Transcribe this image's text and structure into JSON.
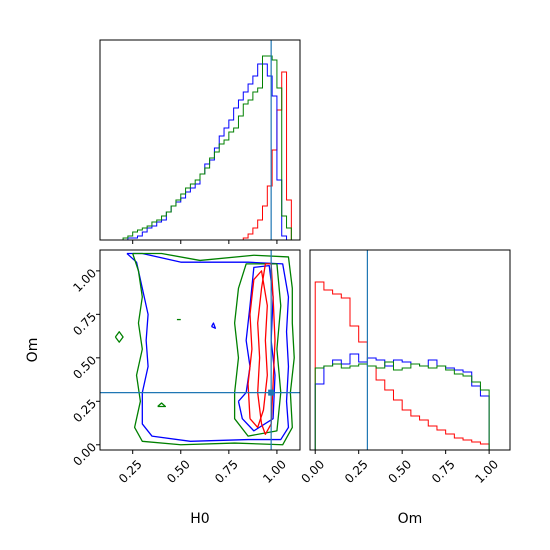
{
  "chart_data": {
    "type": "corner",
    "parameters": [
      "H0",
      "Om"
    ],
    "truths": {
      "H0": 0.97,
      "Om": 0.3
    },
    "truth_color": "#1f77b4",
    "series_colors": {
      "red": "#ff0000",
      "blue": "#0000ff",
      "green": "#008000"
    },
    "axes": {
      "H0": {
        "range": [
          0.08,
          1.12
        ],
        "ticks": [
          0.25,
          0.5,
          0.75,
          1.0
        ],
        "tick_labels": [
          "0.25",
          "0.50",
          "0.75",
          "1.00"
        ]
      },
      "Om": {
        "range": [
          -0.03,
          1.12
        ],
        "ticks": [
          0.0,
          0.25,
          0.5,
          0.75,
          1.0
        ],
        "tick_labels": [
          "0.00",
          "0.25",
          "0.50",
          "0.75",
          "1.00"
        ]
      }
    },
    "histograms": [
      {
        "param": "H0",
        "bins": [
          0.1,
          1.1,
          40
        ],
        "series": [
          {
            "color": "red",
            "counts": [
              0,
              0,
              0,
              0,
              0,
              0,
              0,
              0,
              0,
              0,
              0,
              0,
              0,
              0,
              0,
              0,
              0,
              0,
              0,
              0,
              0,
              0,
              0,
              0,
              0,
              0,
              0,
              0,
              0,
              0.01,
              0.03,
              0.06,
              0.1,
              0.17,
              0.27,
              0.45,
              0.65,
              0.84,
              0.2,
              0
            ]
          },
          {
            "color": "blue",
            "counts": [
              0,
              0,
              0,
              0,
              0,
              0.01,
              0.01,
              0.02,
              0.04,
              0.06,
              0.07,
              0.09,
              0.1,
              0.14,
              0.17,
              0.19,
              0.21,
              0.24,
              0.26,
              0.28,
              0.33,
              0.38,
              0.4,
              0.46,
              0.52,
              0.56,
              0.6,
              0.66,
              0.7,
              0.74,
              0.78,
              0.82,
              0.88,
              0.88,
              0.82,
              0.72,
              0.3,
              0.02,
              0,
              0
            ]
          },
          {
            "color": "green",
            "counts": [
              0,
              0,
              0,
              0,
              0.01,
              0.02,
              0.04,
              0.05,
              0.06,
              0.07,
              0.09,
              0.1,
              0.12,
              0.14,
              0.17,
              0.2,
              0.23,
              0.26,
              0.28,
              0.3,
              0.33,
              0.36,
              0.41,
              0.44,
              0.48,
              0.5,
              0.54,
              0.56,
              0.62,
              0.68,
              0.7,
              0.74,
              0.76,
              0.92,
              0.92,
              0.9,
              0.76,
              0.12,
              0.06,
              0
            ]
          }
        ]
      },
      {
        "param": "Om",
        "bins": [
          0.0,
          1.0,
          20
        ],
        "series": [
          {
            "color": "red",
            "counts": [
              0.84,
              0.8,
              0.78,
              0.76,
              0.62,
              0.54,
              0.42,
              0.35,
              0.3,
              0.25,
              0.2,
              0.17,
              0.15,
              0.12,
              0.1,
              0.08,
              0.06,
              0.05,
              0.04,
              0.03
            ]
          },
          {
            "color": "blue",
            "counts": [
              0.33,
              0.42,
              0.45,
              0.43,
              0.48,
              0.44,
              0.46,
              0.45,
              0.42,
              0.45,
              0.44,
              0.43,
              0.42,
              0.45,
              0.42,
              0.41,
              0.4,
              0.39,
              0.32,
              0.27
            ]
          },
          {
            "color": "green",
            "counts": [
              0.41,
              0.42,
              0.43,
              0.41,
              0.42,
              0.43,
              0.42,
              0.41,
              0.44,
              0.4,
              0.41,
              0.43,
              0.42,
              0.41,
              0.42,
              0.4,
              0.38,
              0.37,
              0.34,
              0.3
            ]
          }
        ]
      }
    ],
    "contours": [
      {
        "color": "blue",
        "points": [
          [
            0.22,
            1.1
          ],
          [
            0.27,
            1.05
          ],
          [
            0.3,
            0.9
          ],
          [
            0.33,
            0.75
          ],
          [
            0.32,
            0.6
          ],
          [
            0.33,
            0.45
          ],
          [
            0.3,
            0.3
          ],
          [
            0.3,
            0.12
          ],
          [
            0.35,
            0.05
          ],
          [
            0.55,
            0.02
          ],
          [
            0.85,
            0.03
          ],
          [
            1.02,
            0.03
          ],
          [
            1.06,
            0.1
          ],
          [
            1.05,
            0.25
          ],
          [
            1.06,
            0.45
          ],
          [
            1.05,
            0.65
          ],
          [
            1.06,
            0.85
          ],
          [
            1.03,
            1.04
          ],
          [
            0.85,
            1.05
          ],
          [
            0.5,
            1.05
          ],
          [
            0.3,
            1.1
          ],
          [
            0.22,
            1.1
          ]
        ]
      },
      {
        "color": "green",
        "points": [
          [
            0.25,
            1.1
          ],
          [
            0.28,
            1.0
          ],
          [
            0.3,
            0.85
          ],
          [
            0.28,
            0.7
          ],
          [
            0.3,
            0.55
          ],
          [
            0.27,
            0.4
          ],
          [
            0.29,
            0.25
          ],
          [
            0.26,
            0.1
          ],
          [
            0.3,
            0.02
          ],
          [
            0.5,
            0.0
          ],
          [
            0.78,
            0.01
          ],
          [
            1.03,
            0.0
          ],
          [
            1.08,
            0.1
          ],
          [
            1.07,
            0.3
          ],
          [
            1.09,
            0.5
          ],
          [
            1.08,
            0.7
          ],
          [
            1.08,
            0.9
          ],
          [
            1.06,
            1.08
          ],
          [
            0.88,
            1.09
          ],
          [
            0.6,
            1.06
          ],
          [
            0.4,
            1.1
          ],
          [
            0.25,
            1.1
          ]
        ]
      },
      {
        "color": "blue",
        "points": [
          [
            0.8,
            0.25
          ],
          [
            0.84,
            0.3
          ],
          [
            0.86,
            0.45
          ],
          [
            0.84,
            0.6
          ],
          [
            0.86,
            0.8
          ],
          [
            0.88,
            1.02
          ],
          [
            0.96,
            1.03
          ],
          [
            0.98,
            0.85
          ],
          [
            0.97,
            0.6
          ],
          [
            0.99,
            0.4
          ],
          [
            0.98,
            0.15
          ],
          [
            0.88,
            0.08
          ],
          [
            0.82,
            0.15
          ],
          [
            0.8,
            0.25
          ]
        ]
      },
      {
        "color": "green",
        "points": [
          [
            0.78,
            0.3
          ],
          [
            0.8,
            0.5
          ],
          [
            0.78,
            0.7
          ],
          [
            0.8,
            0.9
          ],
          [
            0.84,
            1.04
          ],
          [
            1.0,
            1.04
          ],
          [
            1.02,
            0.8
          ],
          [
            1.0,
            0.55
          ],
          [
            1.02,
            0.3
          ],
          [
            1.0,
            0.08
          ],
          [
            0.85,
            0.05
          ],
          [
            0.78,
            0.15
          ],
          [
            0.78,
            0.3
          ]
        ]
      },
      {
        "color": "red",
        "points": [
          [
            0.92,
            0.12
          ],
          [
            0.9,
            0.3
          ],
          [
            0.91,
            0.5
          ],
          [
            0.9,
            0.7
          ],
          [
            0.92,
            0.9
          ],
          [
            0.94,
            1.04
          ],
          [
            0.97,
            1.04
          ],
          [
            0.98,
            0.85
          ],
          [
            0.99,
            0.6
          ],
          [
            0.98,
            0.35
          ],
          [
            0.97,
            0.12
          ],
          [
            0.94,
            0.06
          ],
          [
            0.92,
            0.12
          ]
        ]
      },
      {
        "color": "red",
        "points": [
          [
            0.86,
            0.15
          ],
          [
            0.85,
            0.35
          ],
          [
            0.87,
            0.55
          ],
          [
            0.86,
            0.75
          ],
          [
            0.88,
            0.95
          ],
          [
            0.92,
            1.0
          ],
          [
            0.95,
            0.8
          ],
          [
            0.94,
            0.6
          ],
          [
            0.95,
            0.4
          ],
          [
            0.93,
            0.2
          ],
          [
            0.9,
            0.1
          ],
          [
            0.86,
            0.15
          ]
        ]
      },
      {
        "color": "green",
        "points": [
          [
            0.16,
            0.62
          ],
          [
            0.18,
            0.65
          ],
          [
            0.2,
            0.62
          ],
          [
            0.18,
            0.59
          ],
          [
            0.16,
            0.62
          ]
        ]
      },
      {
        "color": "blue",
        "points": [
          [
            0.66,
            0.68
          ],
          [
            0.67,
            0.7
          ],
          [
            0.68,
            0.67
          ],
          [
            0.66,
            0.68
          ]
        ]
      },
      {
        "color": "green",
        "points": [
          [
            0.38,
            0.22
          ],
          [
            0.4,
            0.24
          ],
          [
            0.42,
            0.22
          ],
          [
            0.38,
            0.22
          ]
        ]
      },
      {
        "color": "green",
        "points": [
          [
            0.48,
            0.72
          ],
          [
            0.5,
            0.72
          ]
        ]
      }
    ]
  }
}
